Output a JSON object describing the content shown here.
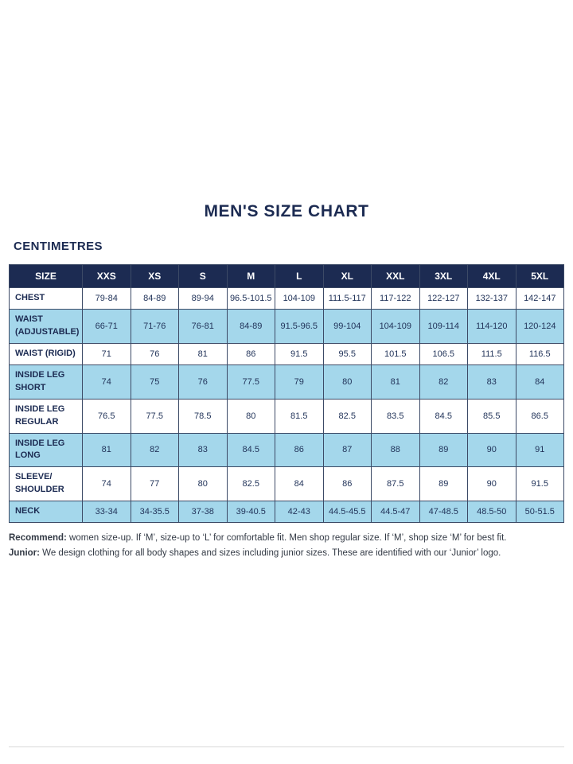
{
  "title": "MEN'S SIZE CHART",
  "unit_label": "CENTIMETRES",
  "chart_data": {
    "type": "table",
    "columns": [
      "SIZE",
      "XXS",
      "XS",
      "S",
      "M",
      "L",
      "XL",
      "XXL",
      "3XL",
      "4XL",
      "5XL"
    ],
    "rows": [
      {
        "label": "CHEST",
        "values": [
          "79-84",
          "84-89",
          "89-94",
          "96.5-101.5",
          "104-109",
          "111.5-117",
          "117-122",
          "122-127",
          "132-137",
          "142-147"
        ]
      },
      {
        "label": "WAIST\n(ADJUSTABLE)",
        "values": [
          "66-71",
          "71-76",
          "76-81",
          "84-89",
          "91.5-96.5",
          "99-104",
          "104-109",
          "109-114",
          "114-120",
          "120-124"
        ]
      },
      {
        "label": "WAIST (RIGID)",
        "values": [
          "71",
          "76",
          "81",
          "86",
          "91.5",
          "95.5",
          "101.5",
          "106.5",
          "111.5",
          "116.5"
        ]
      },
      {
        "label": "INSIDE LEG\nSHORT",
        "values": [
          "74",
          "75",
          "76",
          "77.5",
          "79",
          "80",
          "81",
          "82",
          "83",
          "84"
        ]
      },
      {
        "label": "INSIDE LEG\nREGULAR",
        "values": [
          "76.5",
          "77.5",
          "78.5",
          "80",
          "81.5",
          "82.5",
          "83.5",
          "84.5",
          "85.5",
          "86.5"
        ]
      },
      {
        "label": "INSIDE LEG\nLONG",
        "values": [
          "81",
          "82",
          "83",
          "84.5",
          "86",
          "87",
          "88",
          "89",
          "90",
          "91"
        ]
      },
      {
        "label": "SLEEVE/\nSHOULDER",
        "values": [
          "74",
          "77",
          "80",
          "82.5",
          "84",
          "86",
          "87.5",
          "89",
          "90",
          "91.5"
        ]
      },
      {
        "label": "NECK",
        "values": [
          "33-34",
          "34-35.5",
          "37-38",
          "39-40.5",
          "42-43",
          "44.5-45.5",
          "44.5-47",
          "47-48.5",
          "48.5-50",
          "50-51.5"
        ]
      }
    ]
  },
  "footer": {
    "recommend_label": "Recommend:",
    "recommend_text": " women size-up. If ‘M’, size-up to ‘L’ for comfortable fit. Men shop regular size. If ‘M’, shop size ‘M’ for best fit.",
    "junior_label": "Junior:",
    "junior_text": " We design clothing for all body shapes and sizes including junior sizes. These are identified with our ‘Junior’ logo."
  }
}
